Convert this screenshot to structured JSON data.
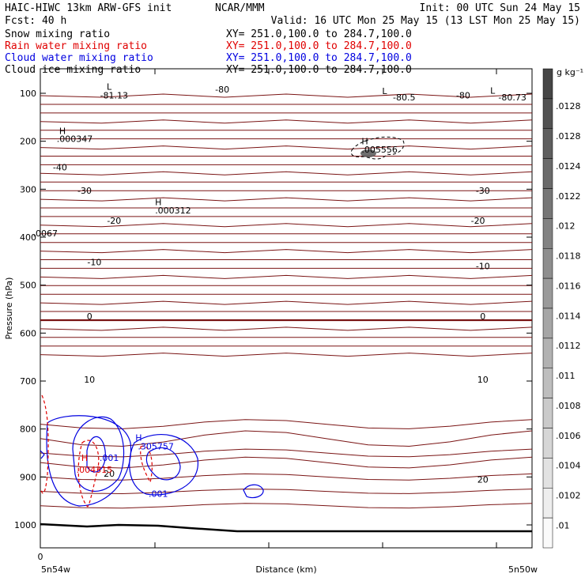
{
  "header": {
    "line1_left": "HAIC-HIWC 13km ARW-GFS init",
    "line1_mid": "NCAR/MMM",
    "line1_right": "Init: 00 UTC Sun 24 May 15",
    "line2_left": "Fcst:   40 h",
    "line2_right": "Valid: 16 UTC Mon 25 May 15 (13 LST Mon 25 May 15)",
    "fields": [
      {
        "name": "Snow mixing ratio",
        "xy": "XY= 251.0,100.0 to 284.7,100.0",
        "color": "#000000"
      },
      {
        "name": "Rain water mixing ratio",
        "xy": "XY= 251.0,100.0 to 284.7,100.0",
        "color": "#e00000"
      },
      {
        "name": "Cloud water mixing ratio",
        "xy": "XY= 251.0,100.0 to 284.7,100.0",
        "color": "#0000e0"
      },
      {
        "name": "Cloud ice mixing ratio",
        "xy": "XY= 251.0,100.0 to 284.7,100.0",
        "color": "#000000"
      }
    ]
  },
  "chart_data": {
    "type": "contour",
    "ylabel": "Pressure (hPa)",
    "xlabel": "Distance (km)",
    "y_ticks": [
      100,
      200,
      300,
      400,
      500,
      600,
      700,
      800,
      900,
      1000
    ],
    "x_tick_label": "0",
    "x_left_label": "5n54w",
    "x_right_label": "5n50w",
    "colorbar": {
      "unit": "g kg⁻¹",
      "labels": [
        ".0128",
        ".0128",
        ".0124",
        ".0122",
        ".012",
        ".0118",
        ".0116",
        ".0114",
        ".0112",
        ".011",
        ".0108",
        ".0106",
        ".0104",
        ".0102",
        ".01"
      ]
    },
    "temperature_labels": [
      {
        "text": "-80",
        "p": 92,
        "frac": 0.37
      },
      {
        "text": "-81.13",
        "p": 104,
        "frac": 0.15
      },
      {
        "text": "L",
        "p": 86,
        "frac": 0.14
      },
      {
        "text": "L",
        "p": 95,
        "frac": 0.7
      },
      {
        "text": "-80.5",
        "p": 108,
        "frac": 0.74
      },
      {
        "text": "-80",
        "p": 104,
        "frac": 0.86
      },
      {
        "text": "L",
        "p": 94,
        "frac": 0.92
      },
      {
        "text": "-80.73",
        "p": 108,
        "frac": 0.96
      },
      {
        "text": "-40",
        "p": 254,
        "frac": 0.04
      },
      {
        "text": "-30",
        "p": 303,
        "frac": 0.09
      },
      {
        "text": "-30",
        "p": 303,
        "frac": 0.9
      },
      {
        "text": "-20",
        "p": 365,
        "frac": 0.15
      },
      {
        "text": "-20",
        "p": 365,
        "frac": 0.89
      },
      {
        "text": "-10",
        "p": 452,
        "frac": 0.11
      },
      {
        "text": "-10",
        "p": 460,
        "frac": 0.9
      },
      {
        "text": "0",
        "p": 565,
        "frac": 0.1
      },
      {
        "text": "0",
        "p": 565,
        "frac": 0.9
      },
      {
        "text": "10",
        "p": 697,
        "frac": 0.1
      },
      {
        "text": "10",
        "p": 697,
        "frac": 0.9
      },
      {
        "text": "20",
        "p": 893,
        "frac": 0.14
      },
      {
        "text": "20",
        "p": 905,
        "frac": 0.9
      }
    ],
    "extrema_labels": [
      {
        "text": "H",
        "p": 178,
        "frac": 0.045,
        "color": "#000000"
      },
      {
        "text": ".000347",
        "p": 195,
        "frac": 0.07,
        "color": "#000000"
      },
      {
        "text": "H",
        "p": 200,
        "frac": 0.66,
        "color": "#000000"
      },
      {
        "text": ".005556",
        "p": 217,
        "frac": 0.69,
        "color": "#000000"
      },
      {
        "text": "H",
        "p": 327,
        "frac": 0.24,
        "color": "#000000"
      },
      {
        "text": ".000312",
        "p": 344,
        "frac": 0.27,
        "color": "#000000"
      },
      {
        "text": ".0067",
        "p": 392,
        "frac": 0.01,
        "color": "#000000"
      },
      {
        "text": "H",
        "p": 860,
        "frac": 0.09,
        "color": "#e00000"
      },
      {
        "text": ".004315",
        "p": 885,
        "frac": 0.11,
        "color": "#e00000"
      },
      {
        "text": ".001",
        "p": 860,
        "frac": 0.14,
        "color": "#0000e0"
      },
      {
        "text": "H",
        "p": 818,
        "frac": 0.2,
        "color": "#0000e0"
      },
      {
        "text": ".305757",
        "p": 836,
        "frac": 0.235,
        "color": "#0000e0"
      },
      {
        "text": ".001",
        "p": 935,
        "frac": 0.24,
        "color": "#0000e0"
      }
    ]
  }
}
